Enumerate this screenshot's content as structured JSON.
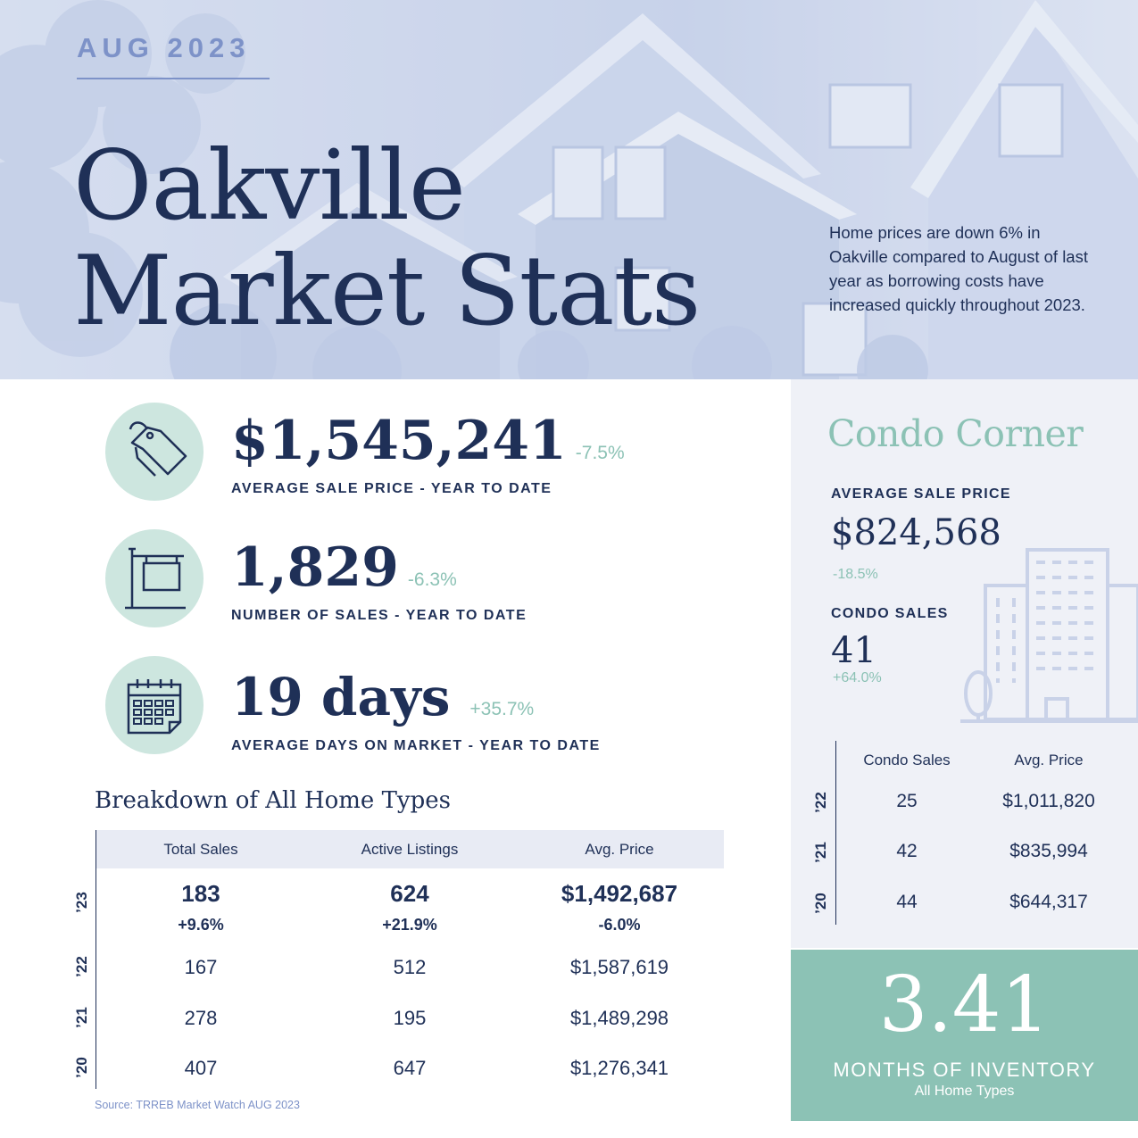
{
  "colors": {
    "navy": "#1f3057",
    "teal": "#8cc2b5",
    "periwinkle": "#7d92c8",
    "mint": "#cde6df"
  },
  "hero": {
    "date": "AUG 2023",
    "title_line1": "Oakville",
    "title_line2": "Market Stats",
    "description": "Home prices are down 6% in Oakville compared to August of last year as borrowing costs have increased quickly throughout 2023."
  },
  "stats": [
    {
      "icon": "price-tag-icon",
      "value": "$1,545,241",
      "change": "-7.5%",
      "label": "AVERAGE SALE PRICE - YEAR TO DATE"
    },
    {
      "icon": "for-sale-sign-icon",
      "value": "1,829",
      "change": "-6.3%",
      "label": "NUMBER OF SALES - YEAR TO DATE"
    },
    {
      "icon": "calendar-icon",
      "value": "19 days",
      "change": "+35.7%",
      "label": "AVERAGE DAYS ON MARKET - YEAR TO DATE"
    }
  ],
  "breakdown": {
    "title": "Breakdown of All Home Types",
    "headers": [
      "Total Sales",
      "Active Listings",
      "Avg. Price"
    ],
    "rows": [
      {
        "year": "’23",
        "values": [
          "183",
          "624",
          "$1,492,687"
        ],
        "changes": [
          "+9.6%",
          "+21.9%",
          "-6.0%"
        ]
      },
      {
        "year": "’22",
        "values": [
          "167",
          "512",
          "$1,587,619"
        ]
      },
      {
        "year": "’21",
        "values": [
          "278",
          "195",
          "$1,489,298"
        ]
      },
      {
        "year": "’20",
        "values": [
          "407",
          "647",
          "$1,276,341"
        ]
      }
    ],
    "source": "Source: TRREB Market Watch AUG 2023"
  },
  "condo": {
    "title": "Condo Corner",
    "avg_price_label": "AVERAGE SALE PRICE",
    "avg_price": "$824,568",
    "avg_price_change": "-18.5%",
    "sales_label": "CONDO SALES",
    "sales": "41",
    "sales_change": "+64.0%",
    "headers": [
      "Condo Sales",
      "Avg. Price"
    ],
    "rows": [
      {
        "year": "’22",
        "values": [
          "25",
          "$1,011,820"
        ]
      },
      {
        "year": "’21",
        "values": [
          "42",
          "$835,994"
        ]
      },
      {
        "year": "’20",
        "values": [
          "44",
          "$644,317"
        ]
      }
    ]
  },
  "inventory": {
    "value": "3.41",
    "label": "MONTHS OF INVENTORY",
    "sub": "All Home Types"
  }
}
